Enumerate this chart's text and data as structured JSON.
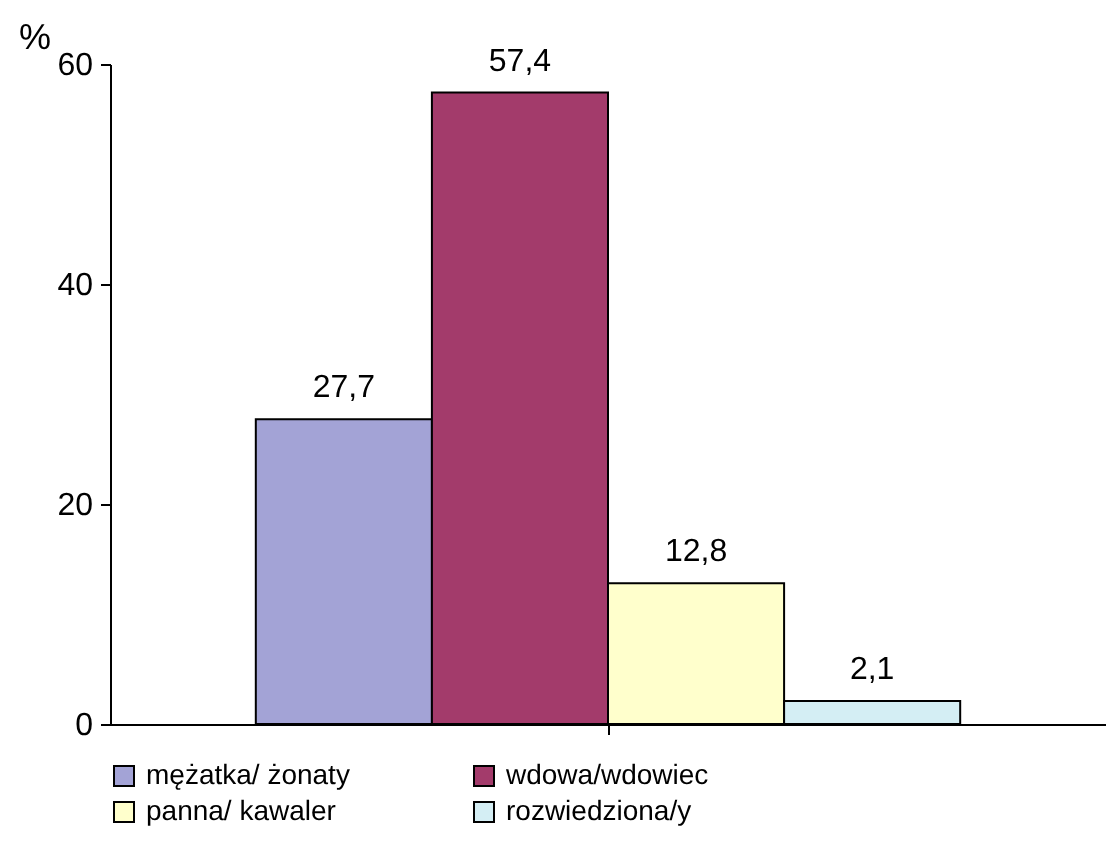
{
  "chart_data": {
    "type": "bar",
    "ylabel": "%",
    "categories": [
      null
    ],
    "series": [
      {
        "name": "mężatka/ żonaty",
        "color": "#a3a3d6",
        "values": [
          27.7
        ],
        "value_labels": [
          "27,7"
        ]
      },
      {
        "name": "wdowa/wdowiec",
        "color": "#a33b6b",
        "values": [
          57.4
        ],
        "value_labels": [
          "57,4"
        ]
      },
      {
        "name": "panna/ kawaler",
        "color": "#ffffcc",
        "values": [
          12.8
        ],
        "value_labels": [
          "12,8"
        ]
      },
      {
        "name": "rozwiedziona/y",
        "color": "#d4eef4",
        "values": [
          2.1
        ],
        "value_labels": [
          "2,1"
        ]
      }
    ],
    "ylim": [
      0,
      60
    ],
    "yticks": [
      0,
      20,
      40,
      60
    ],
    "grid": false,
    "legend": "bottom"
  }
}
